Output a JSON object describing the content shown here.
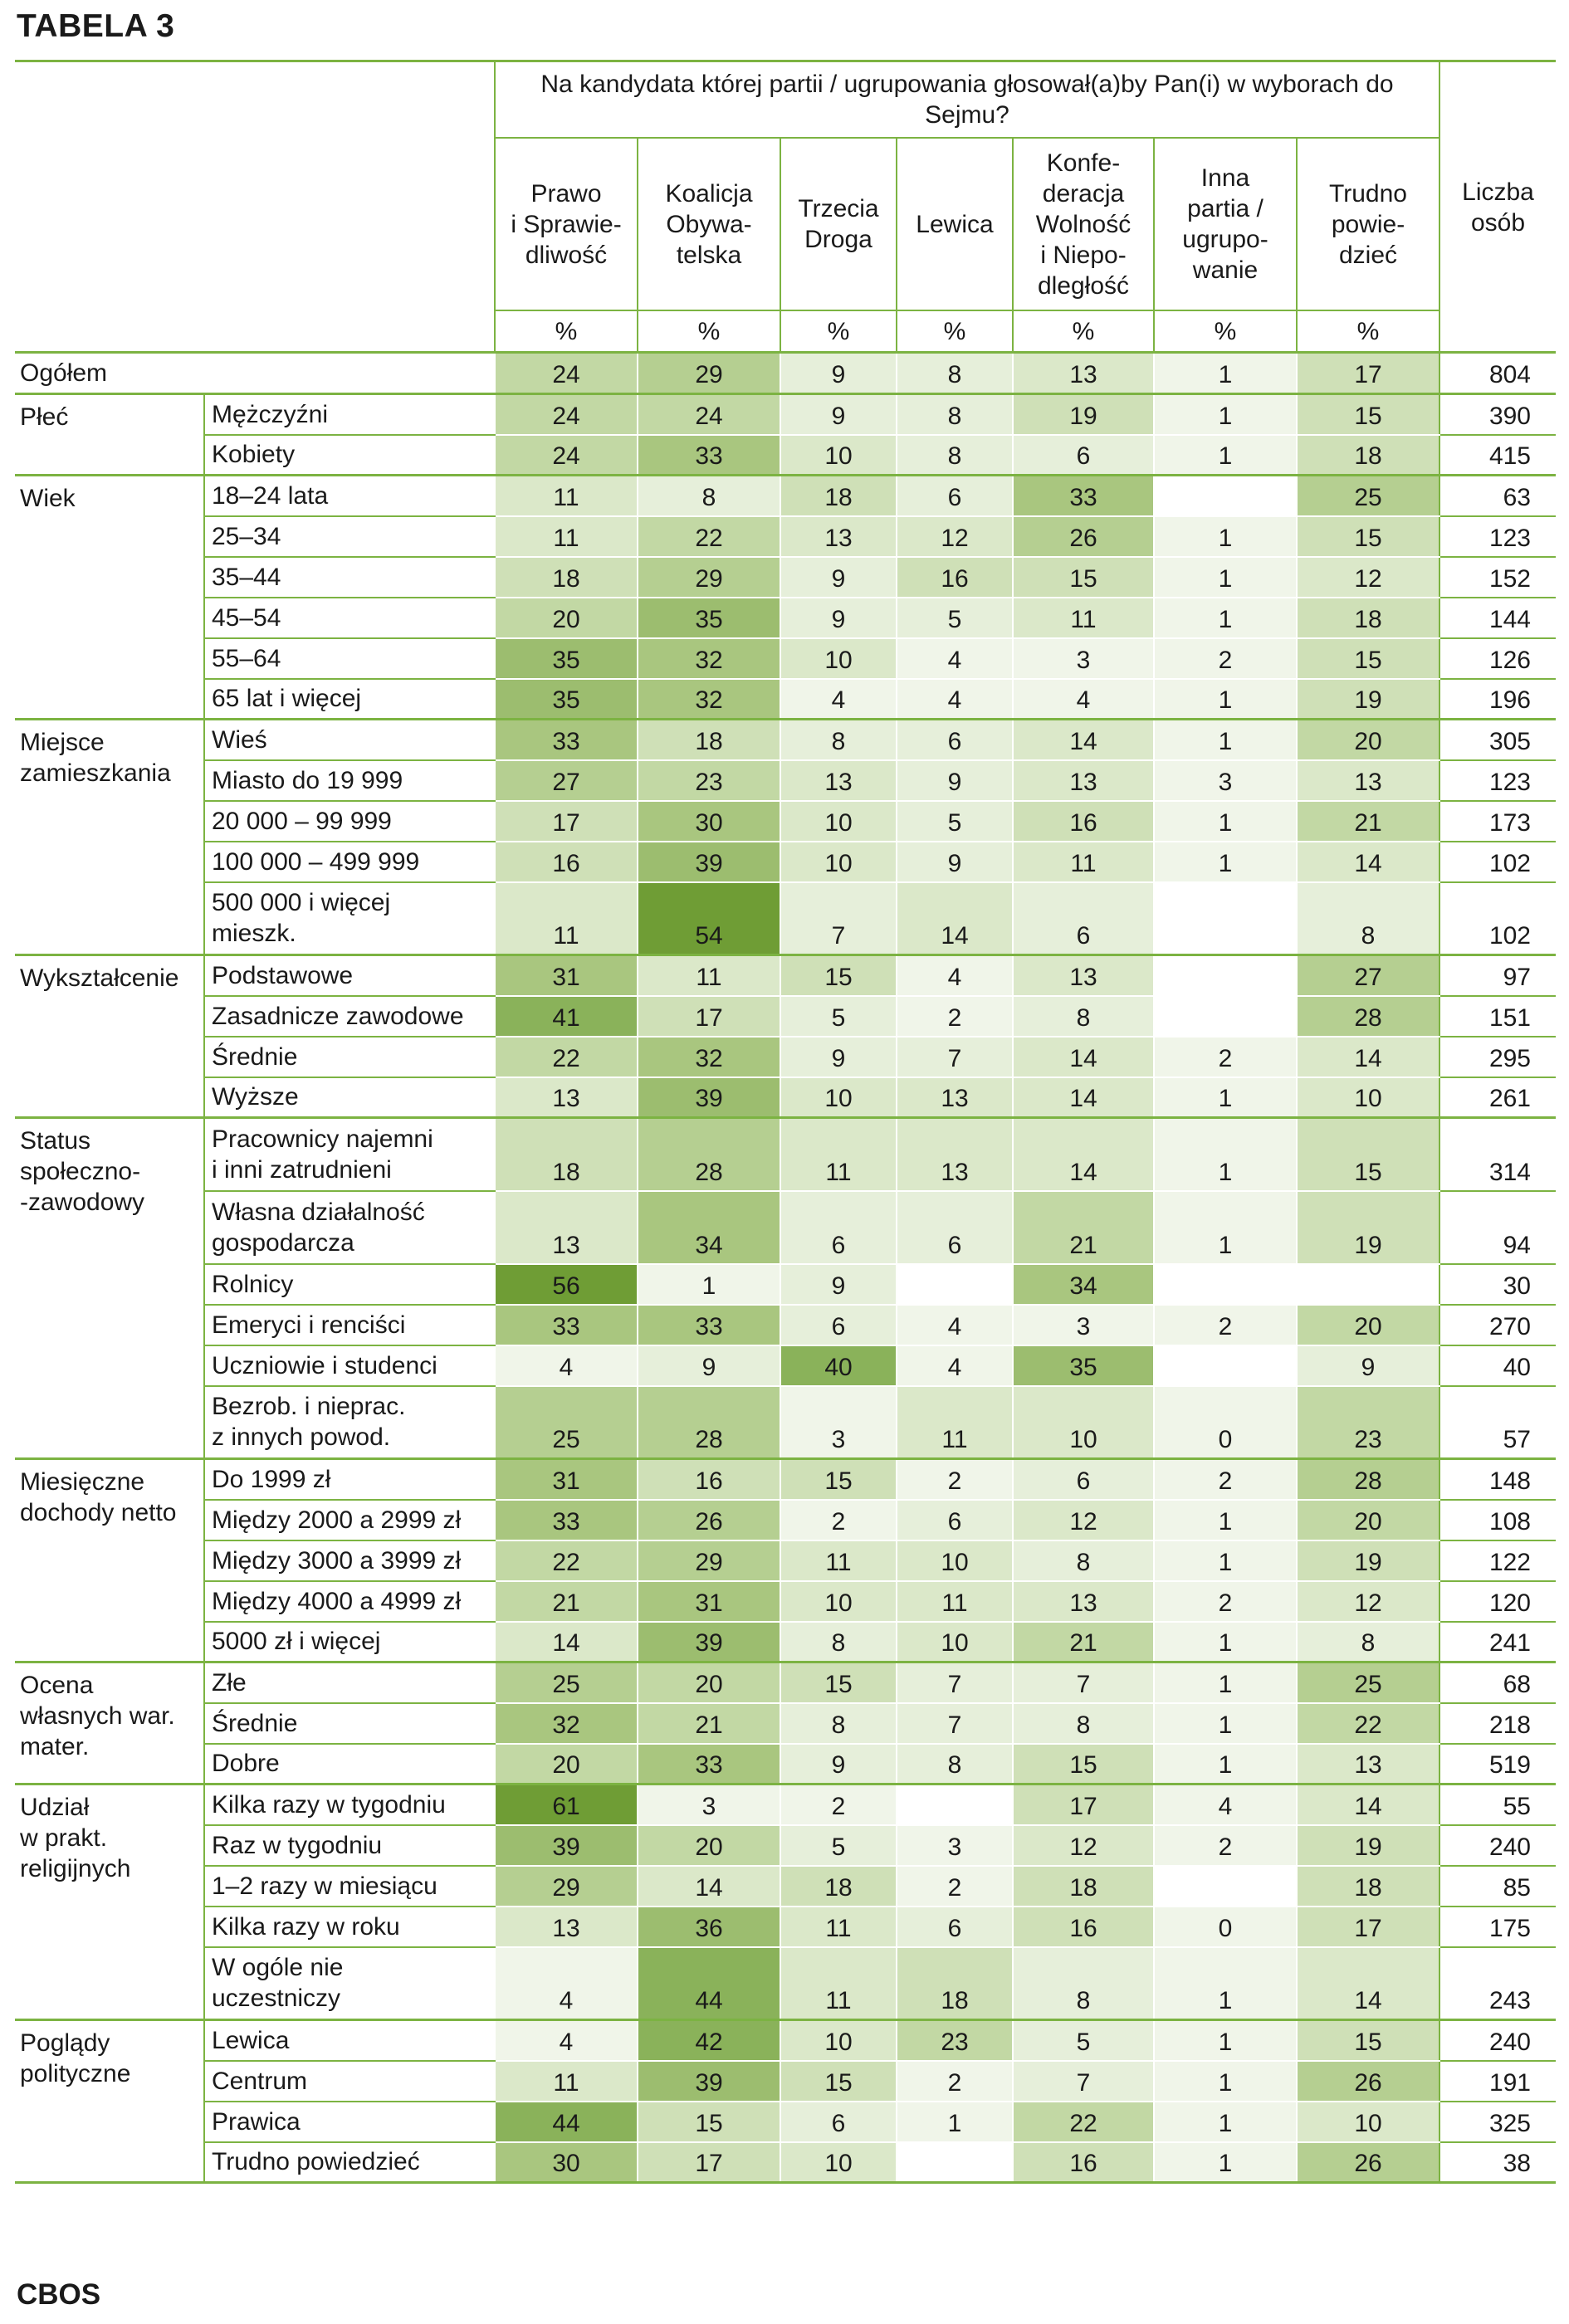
{
  "title": "TABELA 3",
  "footer": "CBOS",
  "header": {
    "question": "Na kandydata której partii / ugrupowania głosował(a)by Pan(i) w wyborach do Sejmu?",
    "columns": [
      {
        "label": "Prawo\ni Sprawie-\ndliwość",
        "unit": "%"
      },
      {
        "label": "Koalicja\nObywa-\ntelska",
        "unit": "%"
      },
      {
        "label": "Trzecia\nDroga",
        "unit": "%"
      },
      {
        "label": "Lewica",
        "unit": "%"
      },
      {
        "label": "Konfe-\nderacja\nWolność\ni Niepo-\ndległość",
        "unit": "%"
      },
      {
        "label": "Inna\npartia /\nugrupo-\nwanie",
        "unit": "%"
      },
      {
        "label": "Trudno\npowie-\ndzieć",
        "unit": "%"
      }
    ],
    "count_label": "Liczba\nosób"
  },
  "total": {
    "label": "Ogółem",
    "values": [
      "24",
      "29",
      "9",
      "8",
      "13",
      "1",
      "17"
    ],
    "count": "804"
  },
  "groups": [
    {
      "label": "Płeć",
      "rows": [
        {
          "label": "Mężczyźni",
          "values": [
            "24",
            "24",
            "9",
            "8",
            "19",
            "1",
            "15"
          ],
          "count": "390"
        },
        {
          "label": "Kobiety",
          "values": [
            "24",
            "33",
            "10",
            "8",
            "6",
            "1",
            "18"
          ],
          "count": "415"
        }
      ]
    },
    {
      "label": "Wiek",
      "rows": [
        {
          "label": "18–24 lata",
          "values": [
            "11",
            "8",
            "18",
            "6",
            "33",
            "",
            "25"
          ],
          "count": "63"
        },
        {
          "label": "25–34",
          "values": [
            "11",
            "22",
            "13",
            "12",
            "26",
            "1",
            "15"
          ],
          "count": "123"
        },
        {
          "label": "35–44",
          "values": [
            "18",
            "29",
            "9",
            "16",
            "15",
            "1",
            "12"
          ],
          "count": "152"
        },
        {
          "label": "45–54",
          "values": [
            "20",
            "35",
            "9",
            "5",
            "11",
            "1",
            "18"
          ],
          "count": "144"
        },
        {
          "label": "55–64",
          "values": [
            "35",
            "32",
            "10",
            "4",
            "3",
            "2",
            "15"
          ],
          "count": "126"
        },
        {
          "label": "65 lat i więcej",
          "values": [
            "35",
            "32",
            "4",
            "4",
            "4",
            "1",
            "19"
          ],
          "count": "196"
        }
      ]
    },
    {
      "label": "Miejsce\nzamieszkania",
      "rows": [
        {
          "label": "Wieś",
          "values": [
            "33",
            "18",
            "8",
            "6",
            "14",
            "1",
            "20"
          ],
          "count": "305"
        },
        {
          "label": "Miasto do 19 999",
          "values": [
            "27",
            "23",
            "13",
            "9",
            "13",
            "3",
            "13"
          ],
          "count": "123"
        },
        {
          "label": "20 000 – 99 999",
          "values": [
            "17",
            "30",
            "10",
            "5",
            "16",
            "1",
            "21"
          ],
          "count": "173"
        },
        {
          "label": "100 000 – 499 999",
          "values": [
            "16",
            "39",
            "10",
            "9",
            "11",
            "1",
            "14"
          ],
          "count": "102"
        },
        {
          "label": "500 000 i więcej\nmieszk.",
          "values": [
            "11",
            "54",
            "7",
            "14",
            "6",
            "",
            "8"
          ],
          "count": "102"
        }
      ]
    },
    {
      "label": "Wykształcenie",
      "rows": [
        {
          "label": "Podstawowe",
          "values": [
            "31",
            "11",
            "15",
            "4",
            "13",
            "",
            "27"
          ],
          "count": "97"
        },
        {
          "label": "Zasadnicze zawodowe",
          "values": [
            "41",
            "17",
            "5",
            "2",
            "8",
            "",
            "28"
          ],
          "count": "151"
        },
        {
          "label": "Średnie",
          "values": [
            "22",
            "32",
            "9",
            "7",
            "14",
            "2",
            "14"
          ],
          "count": "295"
        },
        {
          "label": "Wyższe",
          "values": [
            "13",
            "39",
            "10",
            "13",
            "14",
            "1",
            "10"
          ],
          "count": "261"
        }
      ]
    },
    {
      "label": "Status\nspołeczno-\n-zawodowy",
      "rows": [
        {
          "label": "Pracownicy najemni\ni inni zatrudnieni",
          "values": [
            "18",
            "28",
            "11",
            "13",
            "14",
            "1",
            "15"
          ],
          "count": "314"
        },
        {
          "label": "Własna działalność\ngospodarcza",
          "values": [
            "13",
            "34",
            "6",
            "6",
            "21",
            "1",
            "19"
          ],
          "count": "94"
        },
        {
          "label": "Rolnicy",
          "values": [
            "56",
            "1",
            "9",
            "",
            "34",
            "",
            ""
          ],
          "count": "30"
        },
        {
          "label": "Emeryci i renciści",
          "values": [
            "33",
            "33",
            "6",
            "4",
            "3",
            "2",
            "20"
          ],
          "count": "270"
        },
        {
          "label": "Uczniowie i studenci",
          "values": [
            "4",
            "9",
            "40",
            "4",
            "35",
            "",
            "9"
          ],
          "count": "40"
        },
        {
          "label": "Bezrob. i nieprac.\nz innych powod.",
          "values": [
            "25",
            "28",
            "3",
            "11",
            "10",
            "0",
            "23"
          ],
          "count": "57"
        }
      ]
    },
    {
      "label": "Miesięczne\ndochody netto",
      "rows": [
        {
          "label": "Do 1999 zł",
          "values": [
            "31",
            "16",
            "15",
            "2",
            "6",
            "2",
            "28"
          ],
          "count": "148"
        },
        {
          "label": "Między 2000 a 2999 zł",
          "values": [
            "33",
            "26",
            "2",
            "6",
            "12",
            "1",
            "20"
          ],
          "count": "108"
        },
        {
          "label": "Między 3000 a 3999 zł",
          "values": [
            "22",
            "29",
            "11",
            "10",
            "8",
            "1",
            "19"
          ],
          "count": "122"
        },
        {
          "label": "Między 4000 a 4999 zł",
          "values": [
            "21",
            "31",
            "10",
            "11",
            "13",
            "2",
            "12"
          ],
          "count": "120"
        },
        {
          "label": "5000 zł i więcej",
          "values": [
            "14",
            "39",
            "8",
            "10",
            "21",
            "1",
            "8"
          ],
          "count": "241"
        }
      ]
    },
    {
      "label": "Ocena\nwłasnych war.\nmater.",
      "rows": [
        {
          "label": "Złe",
          "values": [
            "25",
            "20",
            "15",
            "7",
            "7",
            "1",
            "25"
          ],
          "count": "68"
        },
        {
          "label": "Średnie",
          "values": [
            "32",
            "21",
            "8",
            "7",
            "8",
            "1",
            "22"
          ],
          "count": "218"
        },
        {
          "label": "Dobre",
          "values": [
            "20",
            "33",
            "9",
            "8",
            "15",
            "1",
            "13"
          ],
          "count": "519"
        }
      ]
    },
    {
      "label": "Udział\nw prakt.\nreligijnych",
      "rows": [
        {
          "label": "Kilka razy w tygodniu",
          "values": [
            "61",
            "3",
            "2",
            "",
            "17",
            "4",
            "14"
          ],
          "count": "55"
        },
        {
          "label": "Raz w tygodniu",
          "values": [
            "39",
            "20",
            "5",
            "3",
            "12",
            "2",
            "19"
          ],
          "count": "240"
        },
        {
          "label": "1–2 razy w miesiącu",
          "values": [
            "29",
            "14",
            "18",
            "2",
            "18",
            "",
            "18"
          ],
          "count": "85"
        },
        {
          "label": "Kilka razy w roku",
          "values": [
            "13",
            "36",
            "11",
            "6",
            "16",
            "0",
            "17"
          ],
          "count": "175"
        },
        {
          "label": "W ogóle nie\nuczestniczy",
          "values": [
            "4",
            "44",
            "11",
            "18",
            "8",
            "1",
            "14"
          ],
          "count": "243"
        }
      ]
    },
    {
      "label": "Poglądy\npolityczne",
      "rows": [
        {
          "label": "Lewica",
          "values": [
            "4",
            "42",
            "10",
            "23",
            "5",
            "1",
            "15"
          ],
          "count": "240"
        },
        {
          "label": "Centrum",
          "values": [
            "11",
            "39",
            "15",
            "2",
            "7",
            "1",
            "26"
          ],
          "count": "191"
        },
        {
          "label": "Prawica",
          "values": [
            "44",
            "15",
            "6",
            "1",
            "22",
            "1",
            "10"
          ],
          "count": "325"
        },
        {
          "label": "Trudno powiedzieć",
          "values": [
            "30",
            "17",
            "10",
            "",
            "16",
            "1",
            "26"
          ],
          "count": "38"
        }
      ]
    }
  ]
}
